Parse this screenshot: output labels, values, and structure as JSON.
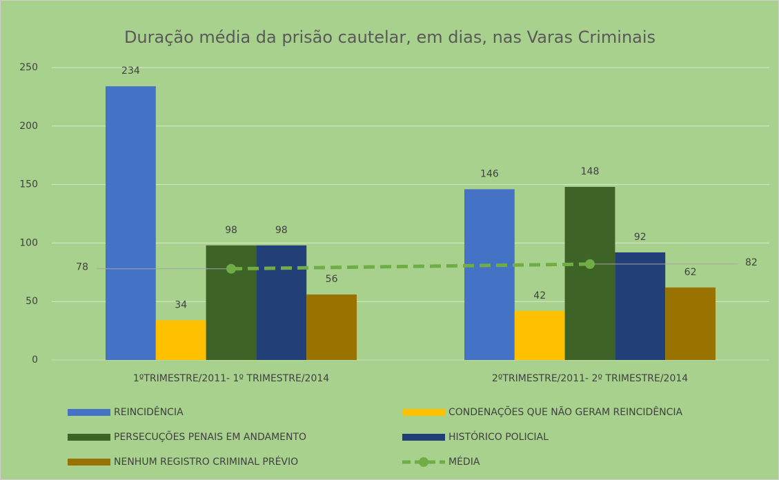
{
  "chart_data": {
    "type": "bar",
    "title": "Duração média da prisão cautelar, em dias, nas Varas Criminais",
    "categories": [
      "1ºTRIMESTRE/2011- 1º TRIMESTRE/2014",
      "2ºTRIMESTRE/2011- 2º TRIMESTRE/2014"
    ],
    "series": [
      {
        "name": "REINCIDÊNCIA",
        "color": "#4472c4",
        "values": [
          234,
          146
        ]
      },
      {
        "name": "CONDENAÇÕES QUE NÃO GERAM REINCIDÊNCIA",
        "color": "#ffc000",
        "values": [
          34,
          42
        ]
      },
      {
        "name": "PERSECUÇÕES PENAIS EM ANDAMENTO",
        "color": "#3e6327",
        "values": [
          98,
          148
        ]
      },
      {
        "name": "HISTÓRICO POLICIAL",
        "color": "#223f77",
        "values": [
          98,
          92
        ]
      },
      {
        "name": "NENHUM REGISTRO CRIMINAL PRÉVIO",
        "color": "#9a7200",
        "values": [
          56,
          62
        ]
      },
      {
        "name": "MÉDIA",
        "color": "#70ad47",
        "type": "line",
        "line_style": "dashed",
        "values": [
          78,
          82
        ]
      }
    ],
    "ylim": [
      0,
      250
    ],
    "yticks": [
      0,
      50,
      100,
      150,
      200,
      250
    ],
    "grid": true,
    "legend": "bottom"
  }
}
